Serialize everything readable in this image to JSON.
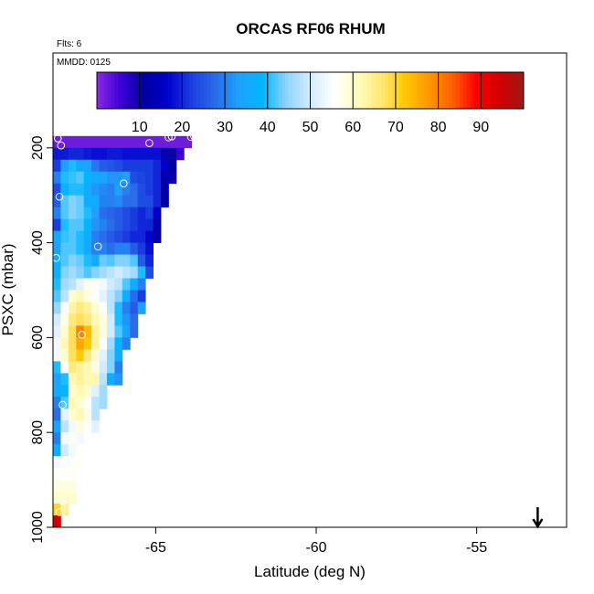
{
  "chart_data": {
    "type": "heatmap",
    "title": "ORCAS RF06 RHUM",
    "notes": [
      "Flts: 6",
      "MMDD: 0125"
    ],
    "xlabel": "Latitude (deg N)",
    "ylabel": "PSXC (mbar)",
    "xlim": [
      -68.2,
      -52.2
    ],
    "ylim": [
      1000,
      0
    ],
    "y_reversed": true,
    "x_ticks": [
      -65,
      -60,
      -55
    ],
    "x_tick_labels": [
      "-65",
      "-60",
      "-55"
    ],
    "y_ticks": [
      200,
      400,
      600,
      800,
      1000
    ],
    "y_tick_labels": [
      "200",
      "400",
      "600",
      "800",
      "1000"
    ],
    "colorbar": {
      "range": [
        0,
        100
      ],
      "ticks": [
        10,
        20,
        30,
        40,
        50,
        60,
        70,
        80,
        90
      ],
      "tick_labels": [
        "10",
        "20",
        "30",
        "40",
        "50",
        "60",
        "70",
        "80",
        "90"
      ],
      "colors": [
        "#8a2be2",
        "#3d00d6",
        "#0000a0",
        "#0000cd",
        "#1a3fe0",
        "#2a6ae8",
        "#1ea2ff",
        "#00b6ff",
        "#8fd4ff",
        "#d2ecff",
        "#ffffff",
        "#fffcc0",
        "#ffe874",
        "#ffc800",
        "#ff9800",
        "#ff6000",
        "#ff0000",
        "#d00000",
        "#a01818"
      ]
    },
    "arrow_marker": {
      "lat": -53.1,
      "symbol": "down-arrow"
    },
    "cell": {
      "dlat": 0.24,
      "dp": 25
    },
    "rows": [
      {
        "p": 187.5,
        "lat0": -68.2,
        "values": [
          2,
          2,
          2,
          2,
          2,
          2,
          2,
          2,
          2,
          2,
          2,
          2,
          2,
          2,
          2,
          2,
          2,
          2
        ]
      },
      {
        "p": 212.5,
        "lat0": -68.2,
        "values": [
          19,
          19,
          20,
          20,
          19,
          18,
          18,
          19,
          19,
          18,
          18,
          18,
          18,
          18,
          13,
          10,
          6
        ]
      },
      {
        "p": 237.5,
        "lat0": -68.2,
        "values": [
          22,
          33,
          40,
          35,
          34,
          29,
          26,
          25,
          24,
          22,
          22,
          22,
          22,
          20,
          16,
          11
        ]
      },
      {
        "p": 262.5,
        "lat0": -68.2,
        "values": [
          30,
          40,
          41,
          42,
          38,
          35,
          34,
          32,
          32,
          33,
          24,
          23,
          22,
          20,
          13,
          10
        ]
      },
      {
        "p": 287.5,
        "lat0": -68.2,
        "values": [
          24,
          38,
          40,
          40,
          36,
          32,
          31,
          30,
          33,
          30,
          28,
          24,
          22,
          20,
          12
        ]
      },
      {
        "p": 312.5,
        "lat0": -68.2,
        "values": [
          26,
          42,
          44,
          43,
          36,
          36,
          30,
          30,
          31,
          28,
          28,
          24,
          24,
          20,
          12
        ]
      },
      {
        "p": 337.5,
        "lat0": -68.2,
        "values": [
          30,
          42,
          44,
          43,
          40,
          33,
          28,
          27,
          26,
          24,
          22,
          20,
          22,
          16
        ]
      },
      {
        "p": 362.5,
        "lat0": -68.2,
        "values": [
          22,
          40,
          42,
          42,
          38,
          32,
          30,
          28,
          26,
          24,
          22,
          20,
          20,
          13
        ]
      },
      {
        "p": 387.5,
        "lat0": -68.2,
        "values": [
          35,
          41,
          42,
          40,
          36,
          30,
          28,
          26,
          24,
          22,
          20,
          20,
          17,
          12
        ]
      },
      {
        "p": 412.5,
        "lat0": -68.2,
        "values": [
          34,
          42,
          42,
          40,
          35,
          30,
          30,
          28,
          30,
          30,
          26,
          22,
          18
        ]
      },
      {
        "p": 437.5,
        "lat0": -68.2,
        "values": [
          37,
          42,
          44,
          43,
          40,
          36,
          43,
          42,
          44,
          44,
          42,
          26,
          20
        ]
      },
      {
        "p": 462.5,
        "lat0": -68.2,
        "values": [
          37,
          44,
          46,
          44,
          42,
          44,
          46,
          48,
          50,
          48,
          46,
          40,
          24
        ]
      },
      {
        "p": 487.5,
        "lat0": -68.2,
        "values": [
          40,
          46,
          48,
          52,
          57,
          56,
          54,
          50,
          48,
          42,
          36,
          30
        ]
      },
      {
        "p": 512.5,
        "lat0": -68.2,
        "values": [
          42,
          48,
          60,
          62,
          58,
          56,
          52,
          48,
          44,
          36,
          28,
          22
        ]
      },
      {
        "p": 537.5,
        "lat0": -68.2,
        "values": [
          45,
          55,
          63,
          66,
          64,
          60,
          56,
          48,
          40,
          30,
          26,
          34
        ]
      },
      {
        "p": 562.5,
        "lat0": -68.2,
        "values": [
          50,
          58,
          66,
          68,
          66,
          62,
          58,
          50,
          40,
          32,
          28
        ]
      },
      {
        "p": 587.5,
        "lat0": -68.2,
        "values": [
          52,
          60,
          68,
          80,
          74,
          64,
          58,
          50,
          42,
          34,
          28
        ]
      },
      {
        "p": 612.5,
        "lat0": -68.2,
        "values": [
          54,
          62,
          68,
          76,
          72,
          64,
          56,
          46,
          38,
          30
        ]
      },
      {
        "p": 637.5,
        "lat0": -68.2,
        "values": [
          54,
          60,
          68,
          72,
          66,
          60,
          52,
          44,
          36
        ]
      },
      {
        "p": 662.5,
        "lat0": -68.2,
        "values": [
          40,
          56,
          66,
          64,
          62,
          58,
          50,
          44,
          30
        ]
      },
      {
        "p": 687.5,
        "lat0": -68.2,
        "values": [
          34,
          40,
          62,
          64,
          62,
          62,
          48,
          36,
          32
        ]
      },
      {
        "p": 712.5,
        "lat0": -68.2,
        "values": [
          36,
          38,
          60,
          62,
          60,
          52,
          46
        ]
      },
      {
        "p": 737.5,
        "lat0": -68.2,
        "values": [
          30,
          42,
          62,
          60,
          56,
          48,
          46
        ]
      },
      {
        "p": 762.5,
        "lat0": -68.2,
        "values": [
          28,
          52,
          60,
          62,
          58,
          48
        ]
      },
      {
        "p": 787.5,
        "lat0": -68.2,
        "values": [
          34,
          48,
          54,
          58,
          56,
          52
        ]
      },
      {
        "p": 812.5,
        "lat0": -68.2,
        "values": [
          30,
          54,
          56,
          54
        ]
      },
      {
        "p": 837.5,
        "lat0": -68.2,
        "values": [
          36,
          50,
          54,
          56
        ]
      },
      {
        "p": 862.5,
        "lat0": -68.2,
        "values": [
          54,
          56,
          56,
          56
        ]
      },
      {
        "p": 887.5,
        "lat0": -68.2,
        "values": [
          56,
          56,
          56
        ]
      },
      {
        "p": 912.5,
        "lat0": -68.2,
        "values": [
          58,
          58,
          58
        ]
      },
      {
        "p": 937.5,
        "lat0": -68.2,
        "values": [
          60,
          60,
          60
        ]
      },
      {
        "p": 962.5,
        "lat0": -68.2,
        "values": [
          70,
          64
        ]
      },
      {
        "p": 987.5,
        "lat0": -68.2,
        "values": [
          94
        ]
      }
    ],
    "obs_points": [
      {
        "lat": -68.05,
        "p": 180
      },
      {
        "lat": -67.95,
        "p": 195
      },
      {
        "lat": -65.2,
        "p": 190
      },
      {
        "lat": -64.6,
        "p": 178
      },
      {
        "lat": -64.5,
        "p": 176
      },
      {
        "lat": -63.9,
        "p": 177
      },
      {
        "lat": -63.8,
        "p": 176
      },
      {
        "lat": -66.0,
        "p": 275
      },
      {
        "lat": -68.0,
        "p": 303
      },
      {
        "lat": -66.8,
        "p": 408
      },
      {
        "lat": -68.1,
        "p": 432
      },
      {
        "lat": -67.3,
        "p": 594
      },
      {
        "lat": -67.9,
        "p": 742
      },
      {
        "lat": -67.9,
        "p": 945
      },
      {
        "lat": -68.0,
        "p": 968
      }
    ]
  }
}
